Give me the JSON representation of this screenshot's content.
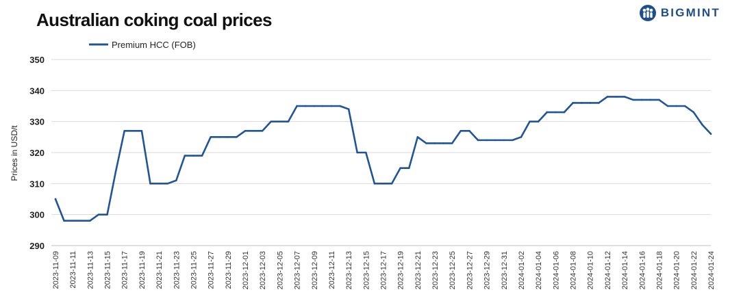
{
  "brand": {
    "logo_text": "BIGMINT",
    "logo_icon": "people-circle-logo"
  },
  "colors": {
    "line": "#1f5598",
    "grid": "#d9d9d9",
    "brand": "#1f4e8c"
  },
  "chart_data": {
    "type": "line",
    "title": "Australian coking coal prices",
    "ylabel": "Prices in USD/t",
    "xlabel": "",
    "ylim": [
      290,
      350
    ],
    "yticks": [
      290,
      300,
      310,
      320,
      330,
      340,
      350
    ],
    "grid": true,
    "legend_position": "top-left",
    "x": [
      "2023-11-09",
      "2023-11-10",
      "2023-11-11",
      "2023-11-12",
      "2023-11-13",
      "2023-11-14",
      "2023-11-15",
      "2023-11-16",
      "2023-11-17",
      "2023-11-18",
      "2023-11-19",
      "2023-11-20",
      "2023-11-21",
      "2023-11-22",
      "2023-11-23",
      "2023-11-24",
      "2023-11-25",
      "2023-11-26",
      "2023-11-27",
      "2023-11-28",
      "2023-11-29",
      "2023-11-30",
      "2023-12-01",
      "2023-12-02",
      "2023-12-03",
      "2023-12-04",
      "2023-12-05",
      "2023-12-06",
      "2023-12-07",
      "2023-12-08",
      "2023-12-09",
      "2023-12-10",
      "2023-12-11",
      "2023-12-12",
      "2023-12-13",
      "2023-12-14",
      "2023-12-15",
      "2023-12-16",
      "2023-12-17",
      "2023-12-18",
      "2023-12-19",
      "2023-12-20",
      "2023-12-21",
      "2023-12-22",
      "2023-12-23",
      "2023-12-24",
      "2023-12-25",
      "2023-12-26",
      "2023-12-27",
      "2023-12-28",
      "2023-12-29",
      "2023-12-30",
      "2023-12-31",
      "2024-01-01",
      "2024-01-02",
      "2024-01-03",
      "2024-01-04",
      "2024-01-05",
      "2024-01-06",
      "2024-01-07",
      "2024-01-08",
      "2024-01-09",
      "2024-01-10",
      "2024-01-11",
      "2024-01-12",
      "2024-01-13",
      "2024-01-14",
      "2024-01-15",
      "2024-01-16",
      "2024-01-17",
      "2024-01-18",
      "2024-01-19",
      "2024-01-20",
      "2024-01-21",
      "2024-01-22",
      "2024-01-23",
      "2024-01-24"
    ],
    "xtick_labels": [
      "2023-11-09",
      "2023-11-11",
      "2023-11-13",
      "2023-11-15",
      "2023-11-17",
      "2023-11-19",
      "2023-11-21",
      "2023-11-23",
      "2023-11-25",
      "2023-11-27",
      "2023-11-29",
      "2023-12-01",
      "2023-12-03",
      "2023-12-05",
      "2023-12-07",
      "2023-12-09",
      "2023-12-11",
      "2023-12-13",
      "2023-12-15",
      "2023-12-17",
      "2023-12-19",
      "2023-12-21",
      "2023-12-23",
      "2023-12-25",
      "2023-12-27",
      "2023-12-29",
      "2023-12-31",
      "2024-01-02",
      "2024-01-04",
      "2024-01-06",
      "2024-01-08",
      "2024-01-10",
      "2024-01-12",
      "2024-01-14",
      "2024-01-16",
      "2024-01-18",
      "2024-01-20",
      "2024-01-22",
      "2024-01-24"
    ],
    "series": [
      {
        "name": "Premium HCC (FOB)",
        "values": [
          305,
          298,
          298,
          298,
          298,
          300,
          300,
          314,
          327,
          327,
          327,
          310,
          310,
          310,
          311,
          319,
          319,
          319,
          325,
          325,
          325,
          325,
          327,
          327,
          327,
          330,
          330,
          330,
          335,
          335,
          335,
          335,
          335,
          335,
          334,
          320,
          320,
          310,
          310,
          310,
          315,
          315,
          325,
          323,
          323,
          323,
          323,
          327,
          327,
          324,
          324,
          324,
          324,
          324,
          325,
          330,
          330,
          333,
          333,
          333,
          336,
          336,
          336,
          336,
          338,
          338,
          338,
          337,
          337,
          337,
          337,
          335,
          335,
          335,
          333,
          329,
          326
        ]
      }
    ]
  }
}
